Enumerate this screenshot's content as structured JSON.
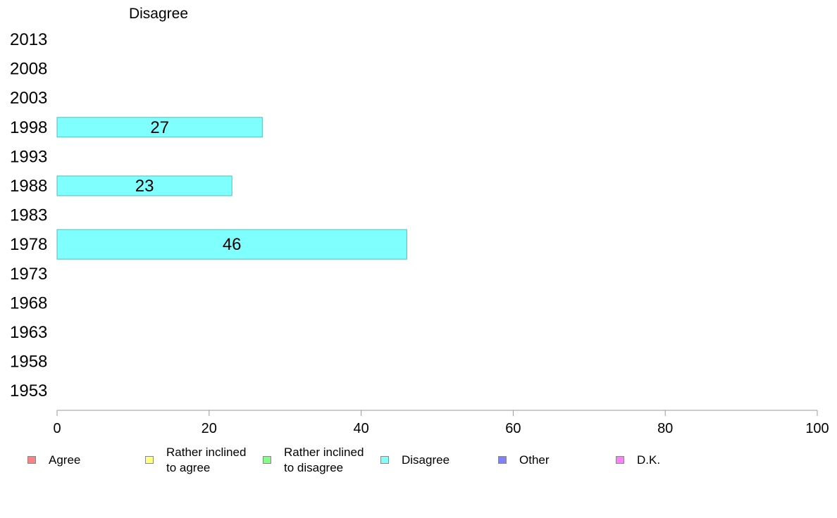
{
  "chart_data": {
    "type": "bar",
    "orientation": "horizontal",
    "title": "Disagree",
    "categories": [
      "2013",
      "2008",
      "2003",
      "1998",
      "1993",
      "1988",
      "1983",
      "1978",
      "1973",
      "1968",
      "1963",
      "1958",
      "1953"
    ],
    "series": [
      {
        "name": "Disagree",
        "color": "#80ffff",
        "values": [
          null,
          null,
          null,
          27,
          null,
          23,
          null,
          46,
          null,
          null,
          null,
          null,
          null
        ]
      }
    ],
    "xlim": [
      0,
      100
    ],
    "xticks": [
      0,
      20,
      40,
      60,
      80,
      100
    ],
    "xlabel": "",
    "ylabel": "",
    "grid": false,
    "legend_placement": "bottom"
  },
  "legend": [
    {
      "label": "Agree",
      "color": "#ff8080"
    },
    {
      "label": "Rather inclined\nto agree",
      "color": "#ffff80"
    },
    {
      "label": "Rather inclined\nto disagree",
      "color": "#80ff80"
    },
    {
      "label": "Disagree",
      "color": "#80ffff"
    },
    {
      "label": "Other",
      "color": "#8080ff"
    },
    {
      "label": "D.K.",
      "color": "#ff80ff"
    }
  ]
}
